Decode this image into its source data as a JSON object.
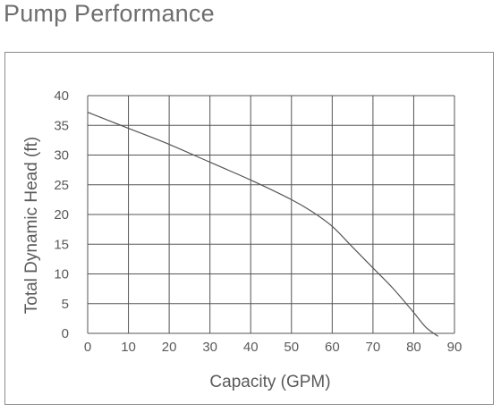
{
  "page": {
    "title": "Pump Performance"
  },
  "chart_data": {
    "type": "line",
    "title": "",
    "xlabel": "Capacity (GPM)",
    "ylabel": "Total Dynamic Head (ft)",
    "xlim": [
      0,
      90
    ],
    "ylim": [
      0,
      40
    ],
    "x_ticks": [
      "0",
      "10",
      "20",
      "30",
      "40",
      "50",
      "60",
      "70",
      "80",
      "90"
    ],
    "y_ticks": [
      "0",
      "5",
      "10",
      "15",
      "20",
      "25",
      "30",
      "35",
      "40"
    ],
    "grid": true,
    "legend": "none",
    "line_color": "#555555",
    "grid_color": "#555555",
    "series": [
      {
        "x": [
          0,
          10,
          20,
          30,
          40,
          50,
          55,
          60,
          65,
          70,
          75,
          80,
          83,
          86
        ],
        "y": [
          37.2,
          34.5,
          31.8,
          28.8,
          25.8,
          22.5,
          20.5,
          18.0,
          14.5,
          11.0,
          7.5,
          3.5,
          1.0,
          -0.5
        ]
      }
    ]
  }
}
